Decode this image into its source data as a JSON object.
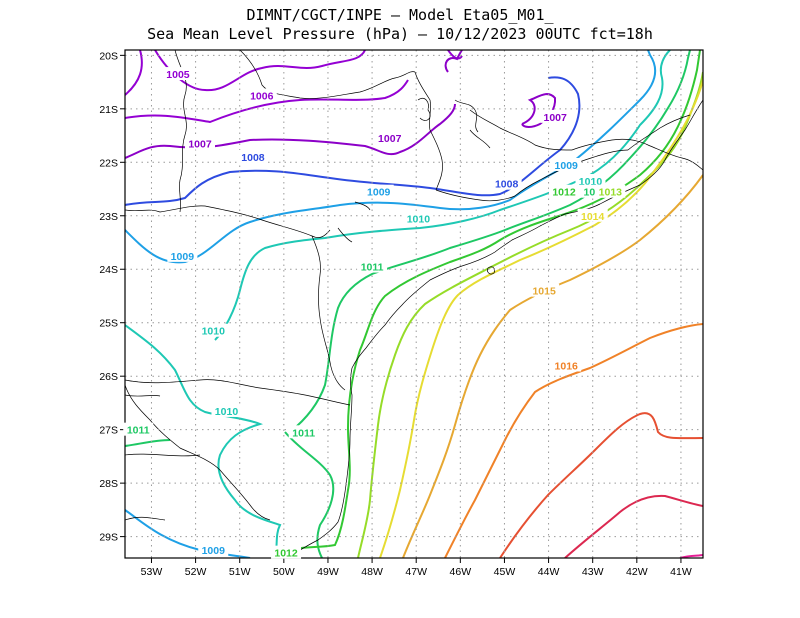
{
  "title": {
    "line1": "DIMNT/CGCT/INPE –  Model Eta05_M01_",
    "line2": "Sea Mean Level Pressure (hPa) – 10/12/2023 00UTC fct=18h"
  },
  "map": {
    "variable": "Sea Mean Level Pressure",
    "units": "hPa",
    "lon_range": [
      -53.6,
      -40.5
    ],
    "lat_range": [
      -29.4,
      -19.9
    ],
    "lon_ticks": [
      "53W",
      "52W",
      "51W",
      "50W",
      "49W",
      "48W",
      "47W",
      "46W",
      "45W",
      "44W",
      "43W",
      "42W",
      "41W"
    ],
    "lon_values": [
      -53,
      -52,
      -51,
      -50,
      -49,
      -48,
      -47,
      -46,
      -45,
      -44,
      -43,
      -42,
      -41
    ],
    "lat_ticks": [
      "20S",
      "21S",
      "22S",
      "23S",
      "24S",
      "25S",
      "26S",
      "27S",
      "28S",
      "29S"
    ],
    "lat_values": [
      -20,
      -21,
      -22,
      -23,
      -24,
      -25,
      -26,
      -27,
      -28,
      -29
    ],
    "grid": true
  },
  "colors": {
    "1005": "#9400d3",
    "1006": "#9400d3",
    "1007": "#8c00c8",
    "1008": "#2e4be0",
    "1009": "#1ea0e6",
    "1010": "#1ec8b4",
    "1011": "#1ec864",
    "1012": "#32c832",
    "1013": "#96dc28",
    "1014": "#e6dc32",
    "1015": "#e6a832",
    "1016": "#f08228",
    "1017": "#e65032",
    "1018": "#dc2850",
    "1019": "#e61e96"
  },
  "contour_labels": [
    {
      "value": "1005",
      "lon": -52.4,
      "lat": -20.35
    },
    {
      "value": "1006",
      "lon": -50.5,
      "lat": -20.75
    },
    {
      "value": "1007",
      "lon": -51.9,
      "lat": -21.65
    },
    {
      "value": "1007",
      "lon": -47.6,
      "lat": -21.55
    },
    {
      "value": "1007",
      "lon": -43.85,
      "lat": -21.15
    },
    {
      "value": "1008",
      "lon": -50.7,
      "lat": -21.9
    },
    {
      "value": "1008",
      "lon": -44.95,
      "lat": -22.4
    },
    {
      "value": "1009",
      "lon": -47.85,
      "lat": -22.55
    },
    {
      "value": "1009",
      "lon": -52.3,
      "lat": -23.75
    },
    {
      "value": "1009",
      "lon": -43.6,
      "lat": -22.05
    },
    {
      "value": "1009",
      "lon": -51.6,
      "lat": -29.25
    },
    {
      "value": "1010",
      "lon": -46.95,
      "lat": -23.05
    },
    {
      "value": "1010",
      "lon": -51.6,
      "lat": -25.15
    },
    {
      "value": "1010",
      "lon": -51.3,
      "lat": -26.65
    },
    {
      "value": "1010",
      "lon": -43.05,
      "lat": -22.35
    },
    {
      "value": "1011",
      "lon": -48.0,
      "lat": -23.95
    },
    {
      "value": "1011",
      "lon": -49.55,
      "lat": -27.05
    },
    {
      "value": "1011",
      "lon": -53.3,
      "lat": -27.0
    },
    {
      "value": "1011",
      "lon": -42.95,
      "lat": -22.55
    },
    {
      "value": "1012",
      "lon": -49.95,
      "lat": -29.3
    },
    {
      "value": "1012",
      "lon": -43.65,
      "lat": -22.55
    },
    {
      "value": "1013",
      "lon": -42.6,
      "lat": -22.55
    },
    {
      "value": "1014",
      "lon": -43.0,
      "lat": -23.0
    },
    {
      "value": "1015",
      "lon": -44.1,
      "lat": -24.4
    },
    {
      "value": "1016",
      "lon": -43.6,
      "lat": -25.8
    }
  ]
}
